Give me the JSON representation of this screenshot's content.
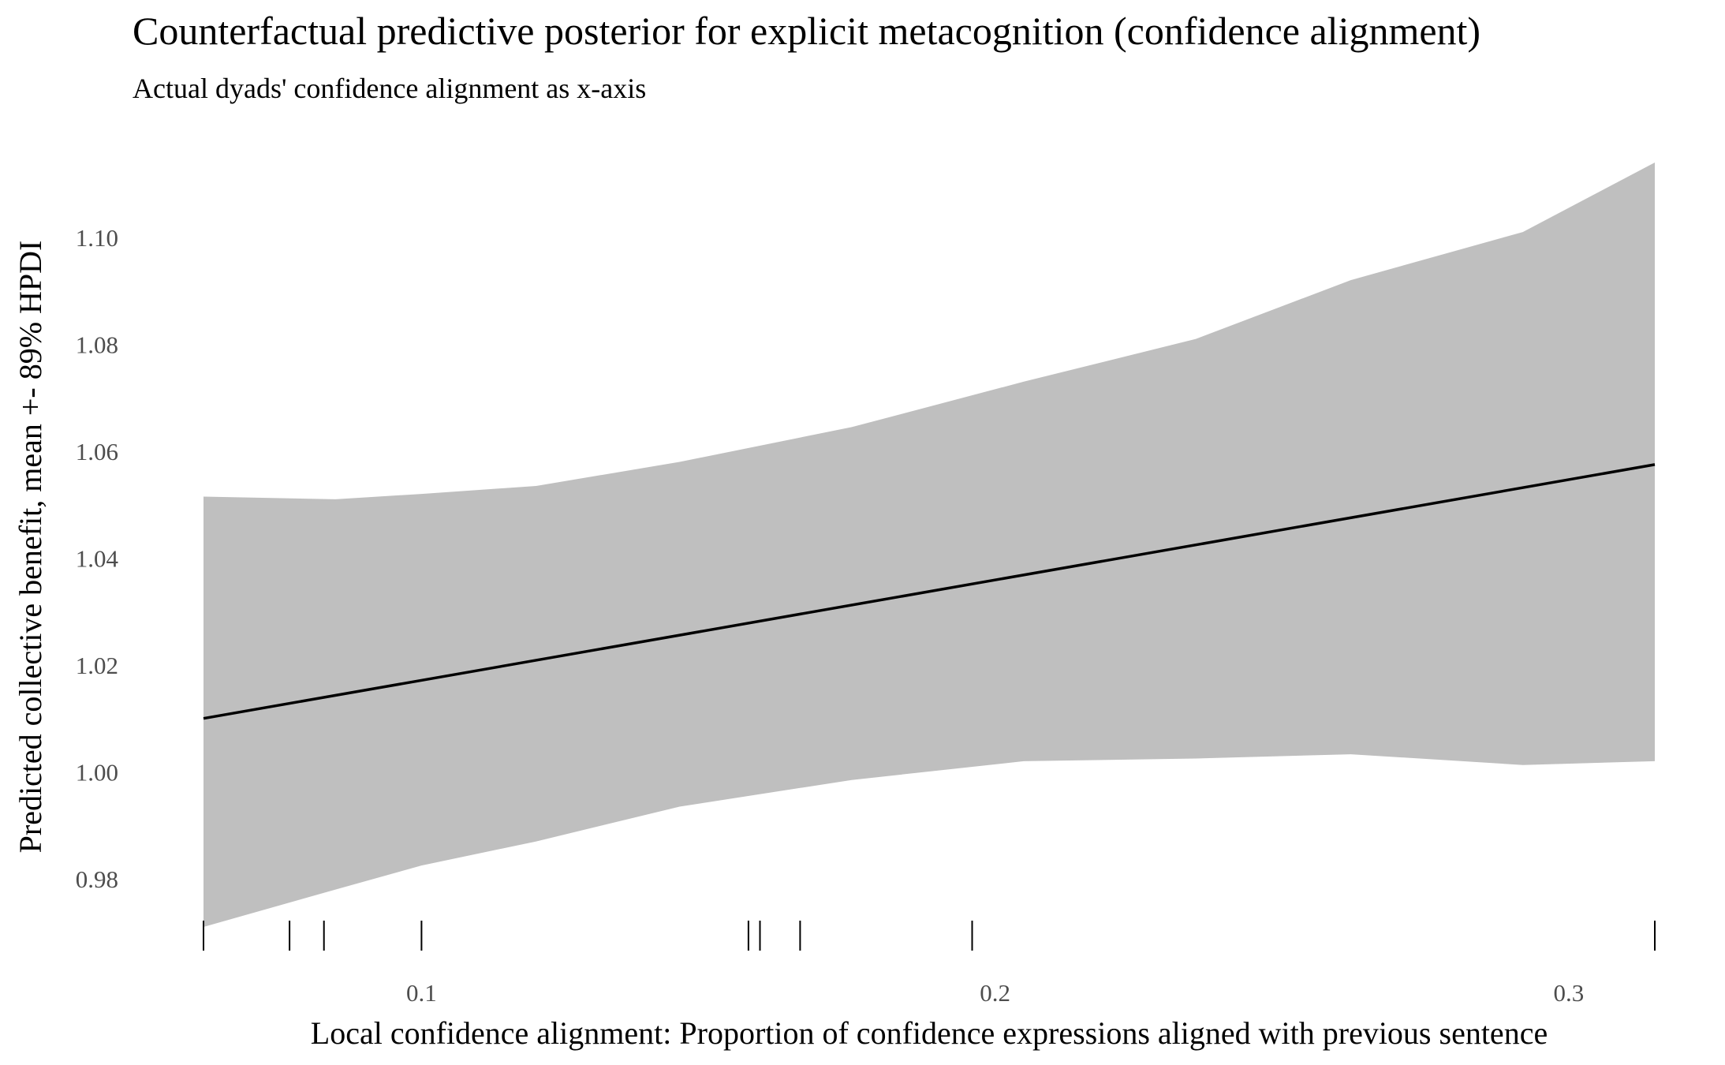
{
  "chart_data": {
    "type": "area",
    "title": "Counterfactual predictive posterior for explicit metacognition (confidence alignment)",
    "subtitle": "Actual dyads' confidence alignment as x-axis",
    "xlabel": "Local confidence alignment: Proportion of confidence expressions aligned with previous sentence",
    "ylabel": "Predicted collective benefit, mean +- 89% HPDI",
    "xlim": [
      0.062,
      0.315
    ],
    "ylim": [
      0.971,
      1.114
    ],
    "x_ticks": [
      0.1,
      0.2,
      0.3
    ],
    "x_tick_labels": [
      "0.1",
      "0.2",
      "0.3"
    ],
    "y_ticks": [
      0.98,
      1.0,
      1.02,
      1.04,
      1.06,
      1.08,
      1.1
    ],
    "y_tick_labels": [
      "0.98",
      "1.00",
      "1.02",
      "1.04",
      "1.06",
      "1.08",
      "1.10"
    ],
    "grid": false,
    "series": [
      {
        "kind": "mean_line",
        "x": [
          0.062,
          0.315
        ],
        "values": [
          1.01,
          1.0575
        ]
      },
      {
        "kind": "hpdi_band",
        "x": [
          0.062,
          0.085,
          0.1,
          0.12,
          0.145,
          0.175,
          0.205,
          0.235,
          0.262,
          0.292,
          0.315
        ],
        "upper": [
          1.0515,
          1.051,
          1.052,
          1.0535,
          1.058,
          1.0645,
          1.073,
          1.081,
          1.092,
          1.101,
          1.114
        ],
        "lower": [
          0.971,
          0.978,
          0.9825,
          0.987,
          0.9935,
          0.9985,
          1.002,
          1.0025,
          1.0033,
          1.0013,
          1.002
        ]
      }
    ],
    "rug_x": [
      0.062,
      0.077,
      0.083,
      0.1,
      0.157,
      0.159,
      0.166,
      0.196,
      0.315
    ],
    "colors": {
      "band": "#bfbfbf",
      "line": "#000000",
      "rug": "#000000"
    }
  }
}
